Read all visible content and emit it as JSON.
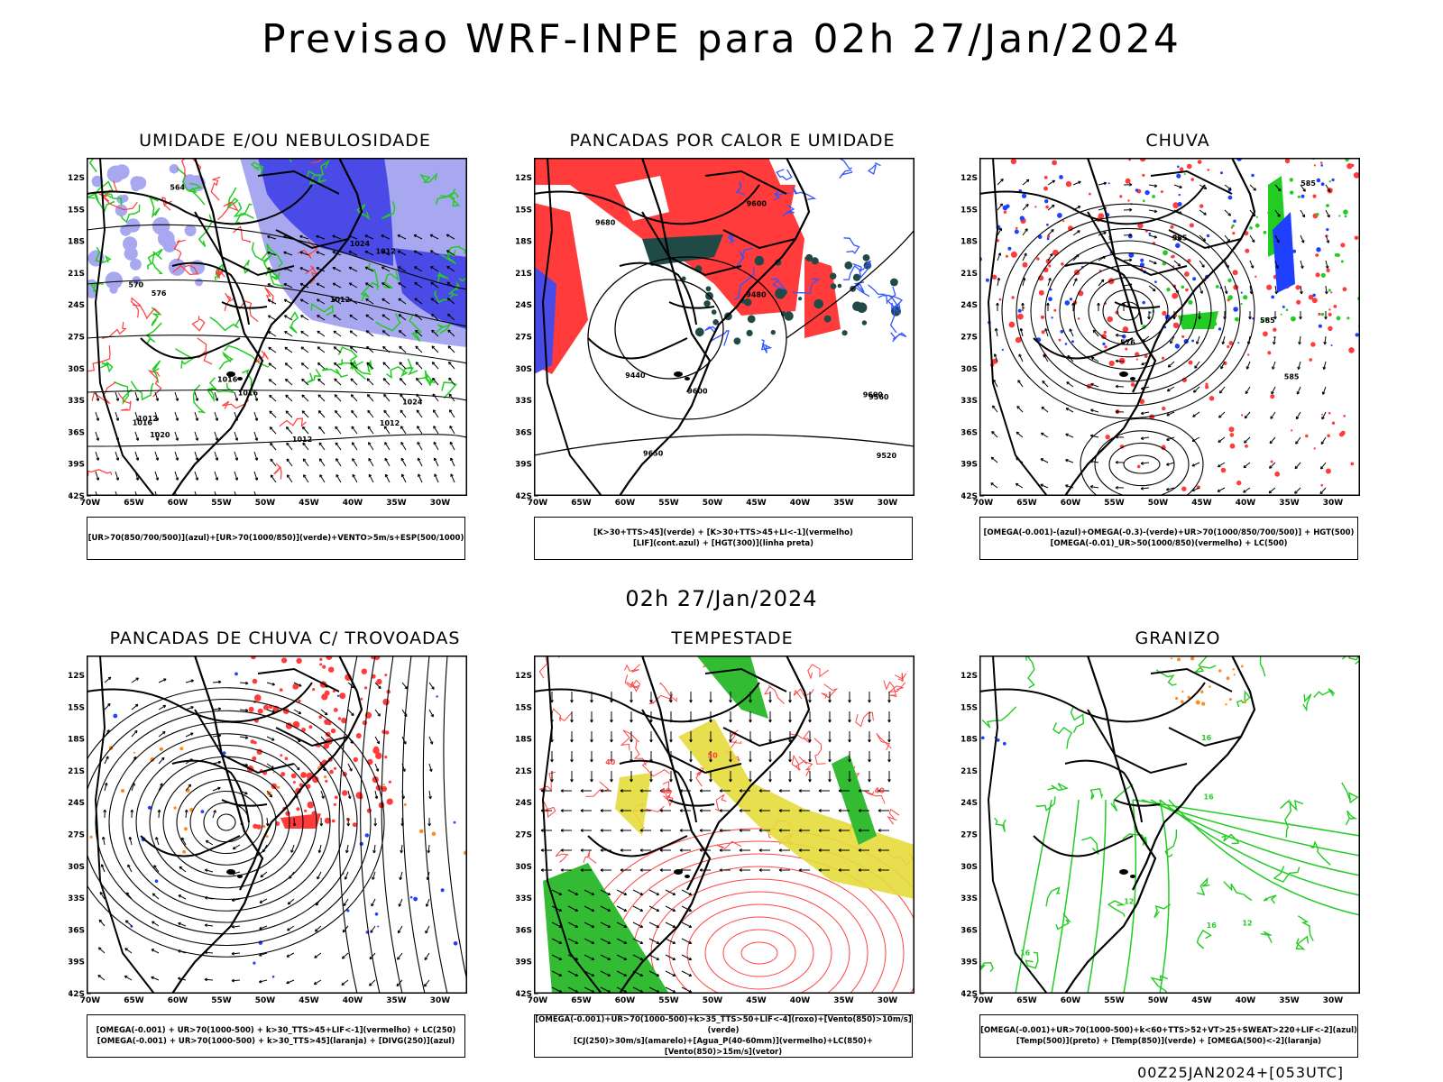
{
  "main_title": "Previsao WRF-INPE  para 02h 27/Jan/2024",
  "center_time": "02h 27/Jan/2024",
  "footer": "00Z25JAN2024+[053UTC]",
  "axes": {
    "lat_labels": [
      "12S",
      "15S",
      "18S",
      "21S",
      "24S",
      "27S",
      "30S",
      "33S",
      "36S",
      "39S",
      "42S"
    ],
    "lon_labels": [
      "70W",
      "65W",
      "60W",
      "55W",
      "50W",
      "45W",
      "40W",
      "35W",
      "30W"
    ]
  },
  "panels": [
    {
      "title": "UMIDADE E/OU NEBULOSIDADE",
      "legend_lines": [
        "[UR>70(850/700/500)](azul)+[UR>70(1000/850)](verde)+VENTO>5m/s+ESP(500/1000)"
      ],
      "contour_labels": [
        "1012",
        "1012",
        "1012",
        "1012",
        "1012",
        "1016",
        "1016",
        "1016",
        "1020",
        "1024",
        "1024",
        "570",
        "576",
        "564"
      ]
    },
    {
      "title": "PANCADAS POR CALOR E UMIDADE",
      "legend_lines": [
        "[K>30+TTS>45](verde) + [K>30+TTS>45+LI<-1](vermelho)",
        "[LIF](cont.azul) + [HGT(300)](linha preta)"
      ],
      "contour_labels": [
        "9480",
        "9560",
        "9600",
        "9520",
        "9440",
        "9600",
        "9650",
        "9680",
        "9600"
      ]
    },
    {
      "title": "CHUVA",
      "legend_lines": [
        "[OMEGA(-0.001)-(azul)+OMEGA(-0.3)-(verde)+UR>70(1000/850/700/500)] + HGT(500)",
        "[OMEGA(-0.01)_UR>50(1000/850)(vermelho) + LC(500)"
      ],
      "contour_labels": [
        "585",
        "585",
        "585",
        "576",
        "585"
      ]
    },
    {
      "title": "PANCADAS DE CHUVA C/ TROVOADAS",
      "legend_lines": [
        "[OMEGA(-0.001) + UR>70(1000-500) + k>30_TTS>45+LIF<-1](vermelho) + LC(250)",
        "[OMEGA(-0.001) + UR>70(1000-500) + k>30_TTS>45](laranja) + [DIVG(250)](azul)"
      ],
      "contour_labels": []
    },
    {
      "title": "TEMPESTADE",
      "legend_lines": [
        "[OMEGA(-0.001)+UR>70(1000-500)+k>35_TTS>50+LIF<-4](roxo)+[Vento(850)>10m/s](verde)",
        "[CJ(250)>30m/s](amarelo)+[Agua_P(40-60mm)](vermelho)+LC(850)+[Vento(850)>15m/s](vetor)"
      ],
      "contour_labels": [
        "40",
        "50",
        "40",
        "40"
      ]
    },
    {
      "title": "GRANIZO",
      "legend_lines": [
        "[OMEGA(-0.001)+UR>70(1000-500)+k<60+TTS>52+VT>25+SWEAT>220+LIF<-2](azul)",
        "[Temp(500)](preto) + [Temp(850)](verde) + [OMEGA(500)<-2](laranja)"
      ],
      "contour_labels": [
        "16",
        "12",
        "16",
        "16",
        "12",
        "16"
      ]
    }
  ],
  "colors": {
    "blue_humidity": "#4a4ae6",
    "light_blue": "#a8a8f0",
    "green": "#22cc22",
    "red": "#ff3b3b",
    "dark_teal": "#1f4a46",
    "yellow": "#e6dc3c",
    "orange": "#ff8a1e"
  }
}
